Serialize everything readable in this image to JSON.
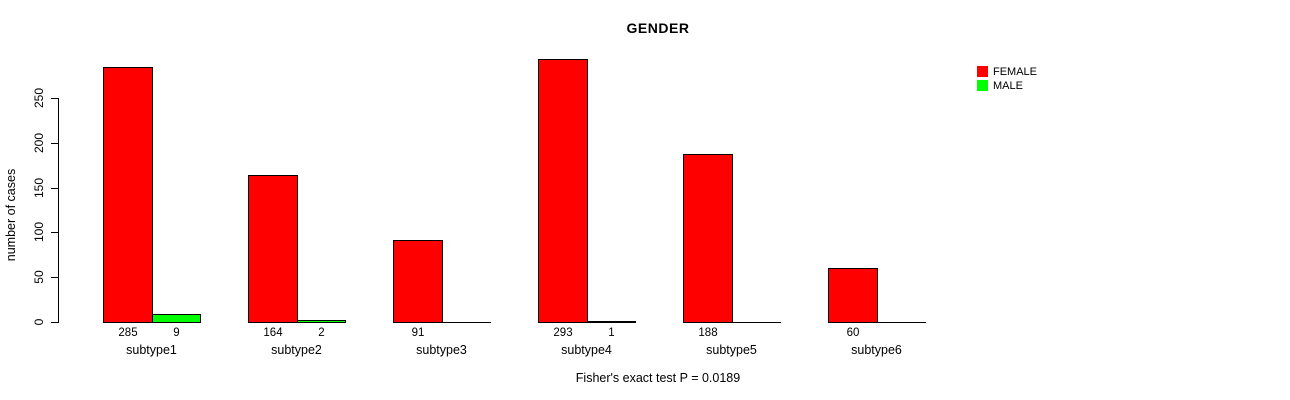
{
  "chart_data": {
    "type": "bar",
    "title": "GENDER",
    "ylabel": "number of cases",
    "xlabel": "",
    "footnote": "Fisher's exact test P = 0.0189",
    "categories": [
      "subtype1",
      "subtype2",
      "subtype3",
      "subtype4",
      "subtype5",
      "subtype6"
    ],
    "series": [
      {
        "name": "FEMALE",
        "color": "#FF0000",
        "values": [
          285,
          164,
          91,
          293,
          188,
          60
        ],
        "bar_labels": [
          "285",
          "164",
          "91",
          "293",
          "188",
          "60"
        ]
      },
      {
        "name": "MALE",
        "color": "#00FF00",
        "values": [
          9,
          2,
          0,
          1,
          0,
          0
        ],
        "bar_labels": [
          "9",
          "2",
          "",
          "1",
          "",
          ""
        ]
      }
    ],
    "yticks": [
      0,
      50,
      100,
      150,
      200,
      250
    ],
    "ylim": [
      0,
      295
    ],
    "grid": false,
    "legend_position": "top-right",
    "bar_border_color": "#000000"
  },
  "colors": {
    "background": "#FFFFFF",
    "axis": "#000000",
    "text": "#000000"
  }
}
